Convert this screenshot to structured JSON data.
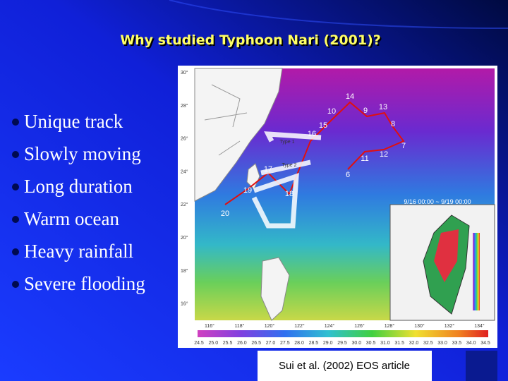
{
  "title": "Why studied Typhoon Nari (2001)?",
  "bullets": [
    "Unique track",
    "Slowly moving",
    "Long duration",
    "Warm ocean",
    "Heavy rainfall",
    "Severe flooding"
  ],
  "figure": {
    "latitude_labels": [
      "30°",
      "28°",
      "26°",
      "24°",
      "22°",
      "20°",
      "18°",
      "16°"
    ],
    "longitude_labels": [
      "116°",
      "118°",
      "120°",
      "122°",
      "124°",
      "126°",
      "128°",
      "130°",
      "132°",
      "134°"
    ],
    "track_points": [
      "14",
      "10",
      "9",
      "13",
      "15",
      "8",
      "16",
      "7",
      "11",
      "12",
      "6",
      "17",
      "19",
      "18",
      "20"
    ],
    "track_types": [
      "Type 1",
      "Type 2"
    ],
    "period": "9/16 00:00 ~ 9/19 00:00",
    "colorbar_labels": [
      "24.5",
      "25.0",
      "25.5",
      "26.0",
      "26.5",
      "27.0",
      "27.5",
      "28.0",
      "28.5",
      "29.0",
      "29.5",
      "30.0",
      "30.5",
      "31.0",
      "31.5",
      "32.0",
      "32.5",
      "33.0",
      "33.5",
      "34.0",
      "34.5"
    ]
  },
  "citation": "Sui et al. (2002) EOS article"
}
